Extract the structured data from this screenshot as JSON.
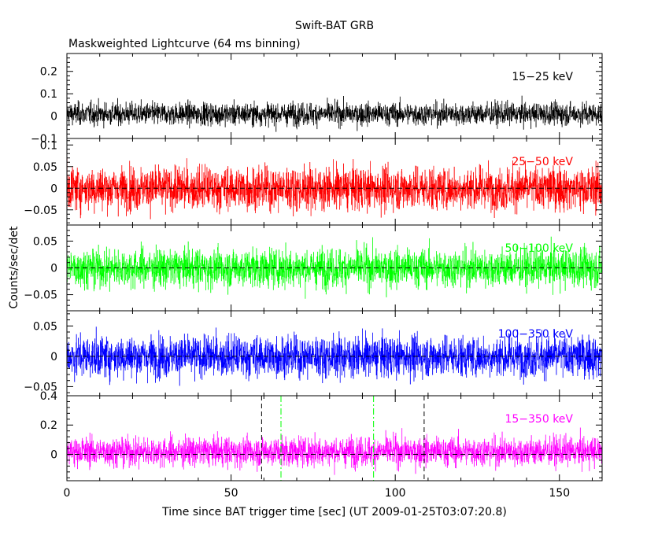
{
  "chart_data": {
    "type": "line",
    "title": "Swift-BAT GRB",
    "subtitle": "Maskweighted Lightcurve (64 ms binning)",
    "xlabel": "Time since BAT trigger time [sec] (UT 2009-01-25T03:07:20.8)",
    "ylabel": "Counts/sec/det",
    "xlim": [
      0,
      163
    ],
    "x_ticks": [
      0,
      50,
      100,
      150
    ],
    "binning_sec": 0.064,
    "grid": false,
    "panels": [
      {
        "name": "15-25 keV",
        "label": "15−25 keV",
        "color": "#000000",
        "ylim": [
          -0.1,
          0.28
        ],
        "y_ticks": [
          {
            "value": -0.1,
            "label": "−0.1"
          },
          {
            "value": 0,
            "label": "0"
          },
          {
            "value": 0.1,
            "label": "0.1"
          },
          {
            "value": 0.2,
            "label": "0.2"
          }
        ],
        "baseline": 0.01,
        "noise_sigma": 0.025,
        "zero_line": false
      },
      {
        "name": "25-50 keV",
        "label": "25−50 keV",
        "color": "#ff0000",
        "ylim": [
          -0.085,
          0.115
        ],
        "y_ticks": [
          {
            "value": -0.05,
            "label": "−0.05"
          },
          {
            "value": 0,
            "label": "0"
          },
          {
            "value": 0.05,
            "label": "0.05"
          },
          {
            "value": 0.1,
            "label": "0.1"
          }
        ],
        "baseline": 0.0,
        "noise_sigma": 0.025,
        "zero_line": true
      },
      {
        "name": "50-100 keV",
        "label": "50−100 keV",
        "color": "#00ff00",
        "ylim": [
          -0.08,
          0.08
        ],
        "y_ticks": [
          {
            "value": -0.05,
            "label": "−0.05"
          },
          {
            "value": 0,
            "label": "0"
          },
          {
            "value": 0.05,
            "label": "0.05"
          }
        ],
        "baseline": 0.0,
        "noise_sigma": 0.018,
        "zero_line": true
      },
      {
        "name": "100-350 keV",
        "label": "100−350 keV",
        "color": "#0000ff",
        "ylim": [
          -0.065,
          0.075
        ],
        "y_ticks": [
          {
            "value": -0.05,
            "label": "−0.05"
          },
          {
            "value": 0,
            "label": "0"
          },
          {
            "value": 0.05,
            "label": "0.05"
          }
        ],
        "baseline": 0.0,
        "noise_sigma": 0.017,
        "zero_line": true
      },
      {
        "name": "15-350 keV",
        "label": "15−350 keV",
        "color": "#ff00ff",
        "ylim": [
          -0.18,
          0.4
        ],
        "y_ticks": [
          {
            "value": 0,
            "label": "0"
          },
          {
            "value": 0.2,
            "label": "0.2"
          },
          {
            "value": 0.4,
            "label": "0.4"
          }
        ],
        "baseline": 0.02,
        "noise_sigma": 0.05,
        "zero_line": true,
        "markers": [
          {
            "x": 59.3,
            "style": "dashed",
            "color": "#000000"
          },
          {
            "x": 65.2,
            "style": "dashdot",
            "color": "#00ff00"
          },
          {
            "x": 93.4,
            "style": "dashdot",
            "color": "#00ff00"
          },
          {
            "x": 108.8,
            "style": "dashed",
            "color": "#000000"
          }
        ]
      }
    ]
  }
}
